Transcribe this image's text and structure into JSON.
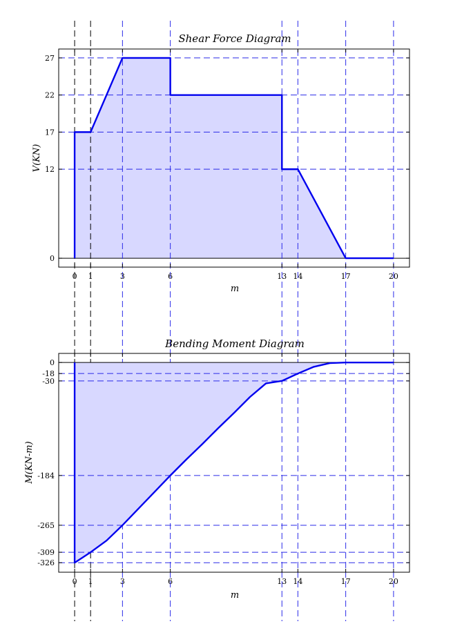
{
  "colors": {
    "curve": "#0000ee",
    "fill": "#d8d8ff",
    "grid_blue": "#2a2ae8",
    "grid_black": "#000000"
  },
  "chart_data": [
    {
      "type": "area",
      "title": "Shear Force Diagram",
      "xlabel": "m",
      "ylabel": "V(KN)",
      "xlim": [
        -1,
        21
      ],
      "ylim": [
        -1.2,
        28.2
      ],
      "xticks": [
        0,
        1,
        3,
        6,
        13,
        14,
        17,
        20
      ],
      "yticks": [
        0,
        12,
        17,
        22,
        27
      ],
      "x": [
        0,
        0,
        1,
        3,
        6,
        6,
        13,
        13,
        14,
        17,
        20
      ],
      "y": [
        0,
        17,
        17,
        27,
        27,
        22,
        22,
        12,
        12,
        0,
        0
      ],
      "grid": "dashed at ticks; x=0 and x=1 black, others blue"
    },
    {
      "type": "area",
      "title": "Bending Moment Diagram",
      "xlabel": "m",
      "ylabel": "M(KN-m)",
      "xlim": [
        -1,
        21
      ],
      "ylim": [
        -341.5,
        14.8
      ],
      "xticks": [
        0,
        1,
        3,
        6,
        13,
        14,
        17,
        20
      ],
      "yticks": [
        0,
        -18,
        -30,
        -184,
        -265,
        -309,
        -326
      ],
      "ytick_labels": [
        "0",
        "-18",
        "-30",
        "-184",
        "-265",
        "-309",
        "-326"
      ],
      "x": [
        0,
        0,
        1,
        2,
        3,
        4,
        5,
        6,
        7,
        8,
        9,
        10,
        11,
        12,
        13,
        14,
        15,
        16,
        17,
        20
      ],
      "y": [
        0,
        -326,
        -309,
        -290,
        -265,
        -238,
        -211,
        -184,
        -158,
        -133,
        -107,
        -82,
        -56,
        -34,
        -30,
        -18,
        -7,
        -1,
        0,
        0
      ],
      "grid": "dashed at ticks; x=0 and x=1 black, others blue"
    }
  ]
}
